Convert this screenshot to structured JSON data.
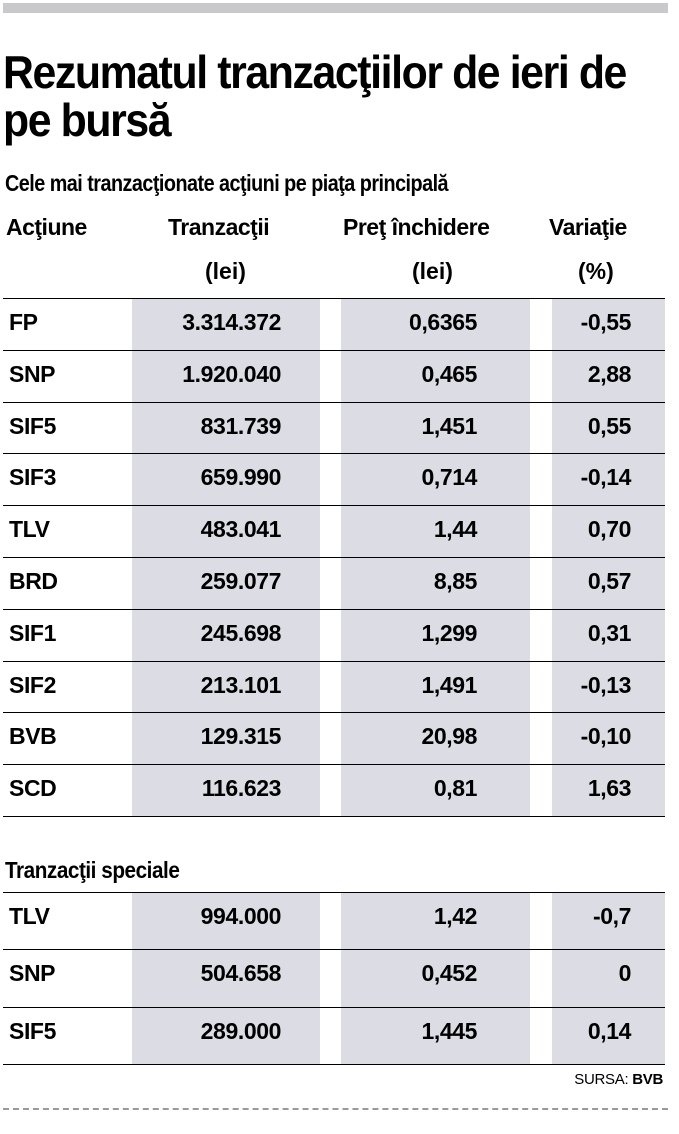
{
  "chart_data": {
    "type": "table",
    "title": "Rezumatul tranzacţiilor de ieri de pe bursă",
    "subtitle": "Cele mai tranzacţionate acţiuni pe piaţa principală",
    "columns": [
      {
        "line1": "Acţiune",
        "line2": ""
      },
      {
        "line1": "Tranzacţii",
        "line2": "(lei)"
      },
      {
        "line1": "Preţ închidere",
        "line2": "(lei)"
      },
      {
        "line1": "Variaţie",
        "line2": "(%)"
      }
    ],
    "rows": [
      {
        "name": "FP",
        "trx": "3.314.372",
        "pret": "0,6365",
        "var": "-0,55"
      },
      {
        "name": "SNP",
        "trx": "1.920.040",
        "pret": "0,465",
        "var": "2,88"
      },
      {
        "name": "SIF5",
        "trx": "831.739",
        "pret": "1,451",
        "var": "0,55"
      },
      {
        "name": "SIF3",
        "trx": "659.990",
        "pret": "0,714",
        "var": "-0,14"
      },
      {
        "name": "TLV",
        "trx": "483.041",
        "pret": "1,44",
        "var": "0,70"
      },
      {
        "name": "BRD",
        "trx": "259.077",
        "pret": "8,85",
        "var": "0,57"
      },
      {
        "name": "SIF1",
        "trx": "245.698",
        "pret": "1,299",
        "var": "0,31"
      },
      {
        "name": "SIF2",
        "trx": "213.101",
        "pret": "1,491",
        "var": "-0,13"
      },
      {
        "name": "BVB",
        "trx": "129.315",
        "pret": "20,98",
        "var": "-0,10"
      },
      {
        "name": "SCD",
        "trx": "116.623",
        "pret": "0,81",
        "var": "1,63"
      }
    ],
    "special_title": "Tranzacţii speciale",
    "special_rows": [
      {
        "name": "TLV",
        "trx": "994.000",
        "pret": "1,42",
        "var": "-0,7"
      },
      {
        "name": "SNP",
        "trx": "504.658",
        "pret": "0,452",
        "var": "0"
      },
      {
        "name": "SIF5",
        "trx": "289.000",
        "pret": "1,445",
        "var": "0,14"
      }
    ],
    "source_label": "SURSA:",
    "source_value": "BVB",
    "colors": {
      "stripe": "#dcdde4",
      "topbar": "#c9c9cb"
    }
  }
}
